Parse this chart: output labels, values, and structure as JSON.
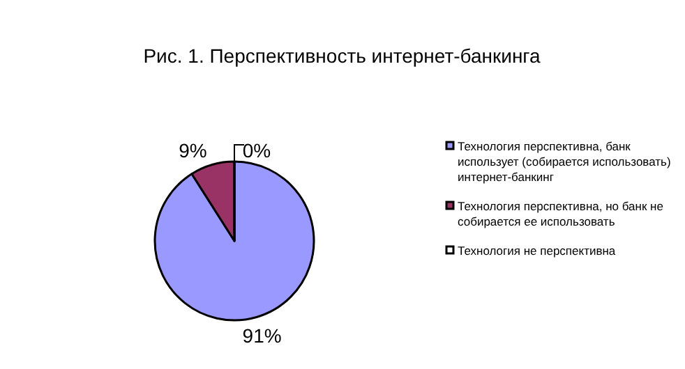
{
  "chart_data": {
    "type": "pie",
    "title": "Рис. 1. Перспективность интернет-банкинга",
    "categories": [
      "Технология  перспективна, банк использует (собирается использовать) интернет-банкинг",
      "Технология  перспективна, но банк не собирается ее использовать",
      "Технология не перспективна"
    ],
    "values": [
      91,
      9,
      0
    ],
    "value_labels": [
      "91%",
      "9%",
      "0%"
    ],
    "colors": [
      "#9999ff",
      "#993366",
      "#ffffff"
    ],
    "legend": "right"
  }
}
